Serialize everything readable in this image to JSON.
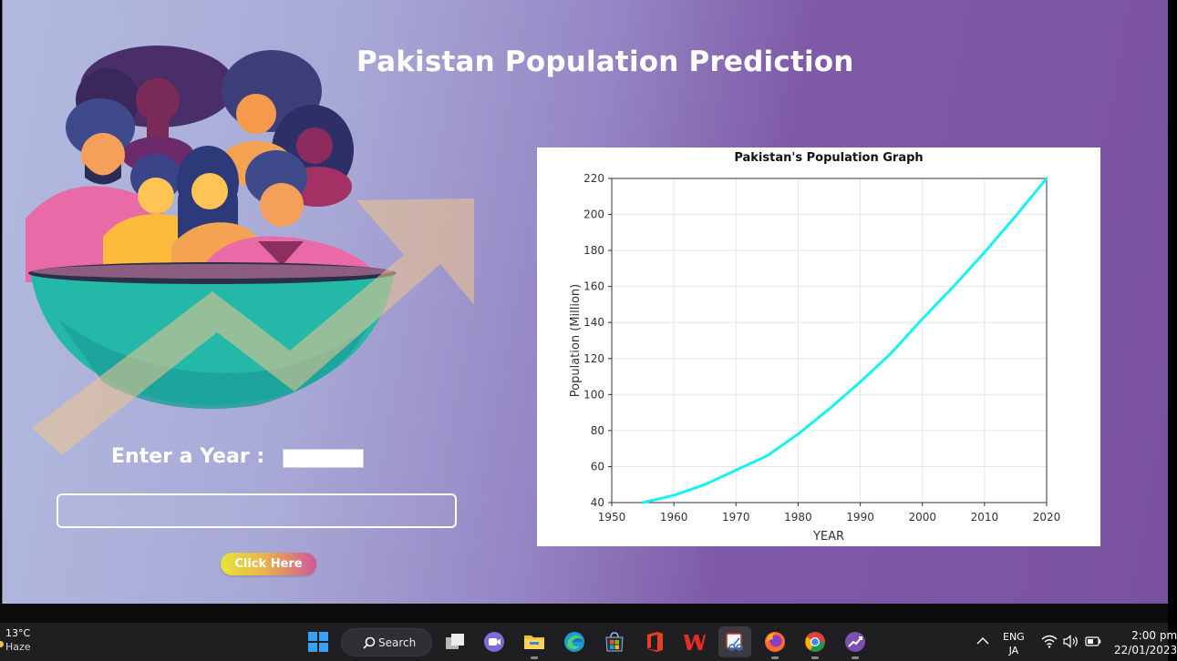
{
  "app": {
    "title": "Pakistan Population Prediction",
    "year_label": "Enter a Year :",
    "year_value": "",
    "result_text": "",
    "button_label": "Click Here"
  },
  "chart_data": {
    "type": "line",
    "title": "Pakistan's Population Graph",
    "xlabel": "YEAR",
    "ylabel": "Population (Million)",
    "xlim": [
      1950,
      2020
    ],
    "ylim": [
      40,
      220
    ],
    "x_ticks": [
      1950,
      1960,
      1970,
      1980,
      1990,
      2000,
      2010,
      2020
    ],
    "y_ticks": [
      40,
      60,
      80,
      100,
      120,
      140,
      160,
      180,
      200,
      220
    ],
    "grid": true,
    "series": [
      {
        "color": "#19f0f0",
        "x": [
          1955,
          1960,
          1965,
          1970,
          1975,
          1980,
          1985,
          1990,
          1995,
          2000,
          2005,
          2010,
          2015,
          2020
        ],
        "y": [
          40,
          44,
          50,
          58,
          66,
          78,
          92,
          107,
          123,
          142,
          160,
          179,
          199,
          220
        ]
      }
    ]
  },
  "taskbar": {
    "weather_temp": "13°C",
    "weather_condition": "Haze",
    "search_label": "Search",
    "lang_top": "ENG",
    "lang_bottom": "JA",
    "time": "2:00 pm",
    "date": "22/01/2023"
  },
  "colors": {
    "accent_line": "#19f0f0",
    "button_gradient_start": "#e8e33a",
    "button_gradient_end": "#d2559b"
  }
}
